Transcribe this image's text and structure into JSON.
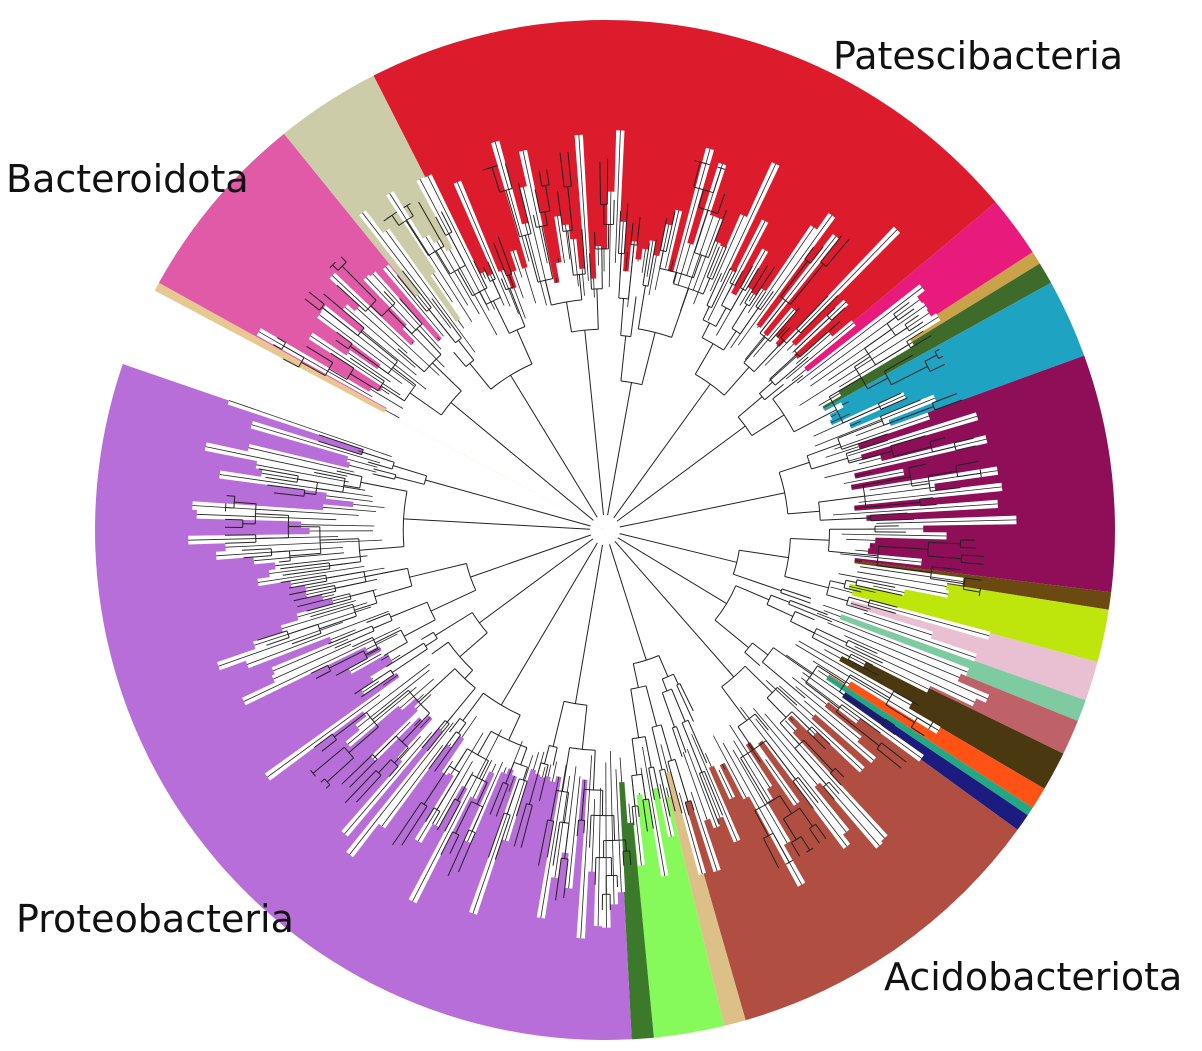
{
  "labels": {
    "patescibacteria": "Patescibacteria",
    "bacteroidota": "Bacteroidota",
    "proteobacteria": "Proteobacteria",
    "acidobacteriota": "Acidobacteriota"
  },
  "clades": [
    {
      "color": "#dc1c2c"
    },
    {
      "color": "#e81a7c"
    },
    {
      "color": "#c9a24a"
    },
    {
      "color": "#3f6b2a"
    },
    {
      "color": "#1fa3c2"
    },
    {
      "color": "#8e0e58"
    },
    {
      "color": "#6a4a10"
    },
    {
      "color": "#bee60c"
    },
    {
      "color": "#e8c0d2"
    },
    {
      "color": "#7ecba2"
    },
    {
      "color": "#bf6168"
    },
    {
      "color": "#4a3810"
    },
    {
      "color": "#ff5214"
    },
    {
      "color": "#24a884"
    },
    {
      "color": "#1c1c80"
    },
    {
      "color": "#b04e42"
    },
    {
      "color": "#dcc088"
    },
    {
      "color": "#86fa5a"
    },
    {
      "color": "#3a7a2a"
    },
    {
      "color": "#b86ed8"
    },
    {
      "color": "#e6c890"
    },
    {
      "color": "#e05aa8"
    },
    {
      "color": "#cccca8"
    }
  ]
}
